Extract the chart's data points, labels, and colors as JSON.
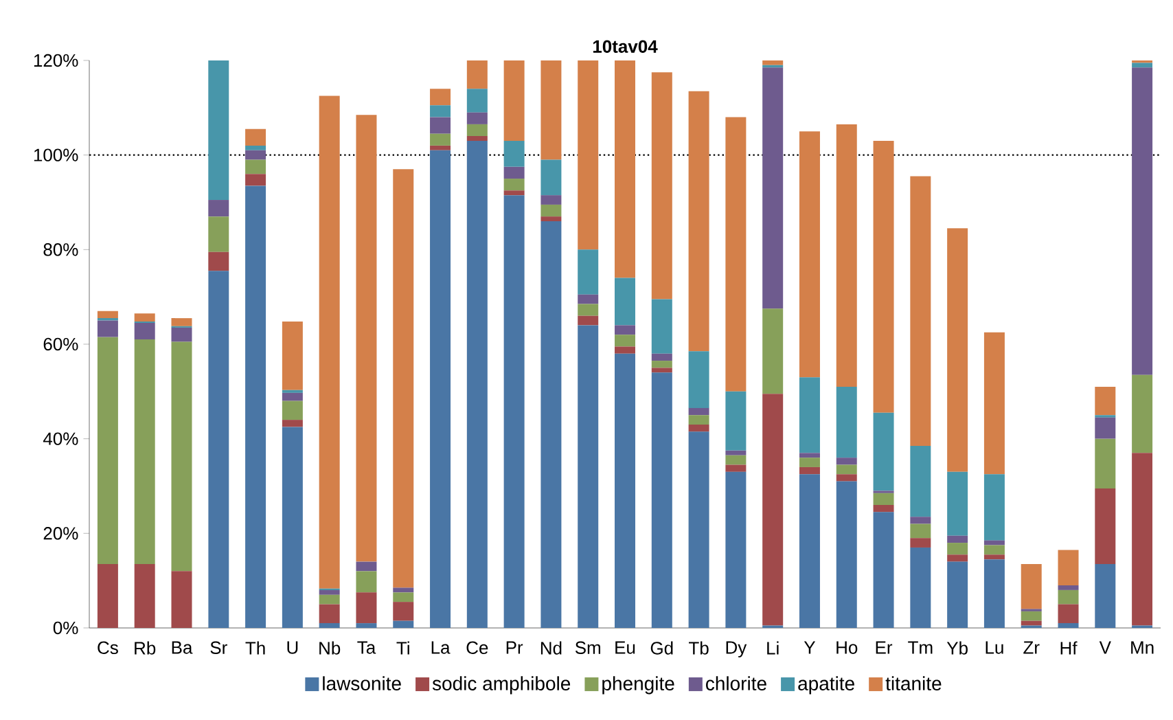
{
  "chart_data": {
    "type": "bar",
    "title": "10tav04",
    "stacked": true,
    "categories": [
      "Cs",
      "Rb",
      "Ba",
      "Sr",
      "Th",
      "U",
      "Nb",
      "Ta",
      "Ti",
      "La",
      "Ce",
      "Pr",
      "Nd",
      "Sm",
      "Eu",
      "Gd",
      "Tb",
      "Dy",
      "Li",
      "Y",
      "Ho",
      "Er",
      "Tm",
      "Yb",
      "Lu",
      "Zr",
      "Hf",
      "V",
      "Mn"
    ],
    "series": [
      {
        "name": "lawsonite",
        "color": "#4a76a5",
        "values": [
          0,
          0,
          0,
          75.5,
          93.5,
          42.5,
          1,
          1,
          1.5,
          101,
          103,
          91.5,
          86,
          64,
          58,
          54,
          41.5,
          33,
          0.5,
          32.5,
          31,
          24.5,
          17,
          14,
          14.5,
          0.5,
          1,
          13.5,
          0.5
        ]
      },
      {
        "name": "sodic amphibole",
        "color": "#a04a4b",
        "values": [
          13.5,
          13.5,
          12,
          4,
          2.5,
          1.5,
          4,
          6.5,
          4,
          1,
          1,
          1,
          1,
          2,
          1.5,
          1,
          1.5,
          1.5,
          49,
          1.5,
          1.5,
          1.5,
          2,
          1.5,
          1,
          1,
          4,
          16,
          36.5
        ]
      },
      {
        "name": "phengite",
        "color": "#87a05a",
        "values": [
          48,
          47.5,
          48.5,
          7.5,
          3,
          4,
          2,
          4.5,
          2,
          2.5,
          2.5,
          2.5,
          2.5,
          2.5,
          2.5,
          1.5,
          2,
          2,
          18,
          2,
          2,
          2.5,
          3,
          2.5,
          2,
          2,
          3,
          10.5,
          16.5
        ]
      },
      {
        "name": "chlorite",
        "color": "#6e5b8e",
        "values": [
          3.5,
          3.5,
          3,
          3.5,
          2,
          1.7,
          1,
          2,
          1,
          3.5,
          2.5,
          2.5,
          2,
          2,
          2,
          1.5,
          1.5,
          1,
          51,
          1,
          1.5,
          0.5,
          1.5,
          1.5,
          1,
          0.5,
          1,
          4.5,
          65
        ]
      },
      {
        "name": "apatite",
        "color": "#4896aa",
        "values": [
          0.5,
          0.3,
          0.3,
          29.5,
          1,
          0.6,
          0.3,
          0,
          0,
          2.5,
          5,
          5.5,
          7.5,
          9.5,
          10,
          11.5,
          12,
          12.5,
          0.5,
          16,
          15,
          16.5,
          15,
          13.5,
          14,
          0,
          0,
          0.5,
          1
        ]
      },
      {
        "name": "titanite",
        "color": "#d4804a",
        "values": [
          1.5,
          1.7,
          1.7,
          null,
          3.5,
          14.5,
          104.2,
          94.5,
          88.5,
          3.5,
          6,
          17,
          21,
          40,
          46,
          48,
          55,
          58,
          1,
          52,
          55.5,
          57.5,
          57,
          51.5,
          30,
          9.5,
          7.5,
          6,
          0.5
        ]
      }
    ],
    "ylim": [
      0,
      120
    ],
    "yticks": [
      {
        "value": 0,
        "label": "0%"
      },
      {
        "value": 20,
        "label": "20%"
      },
      {
        "value": 40,
        "label": "40%"
      },
      {
        "value": 60,
        "label": "60%"
      },
      {
        "value": 80,
        "label": "80%"
      },
      {
        "value": 100,
        "label": "100%"
      },
      {
        "value": 120,
        "label": "120%"
      }
    ],
    "ref_lines": [
      {
        "axis": "y",
        "value": 100,
        "line_style": "dotted",
        "color": "#000000"
      }
    ],
    "legend": "bottom",
    "grid": false
  }
}
